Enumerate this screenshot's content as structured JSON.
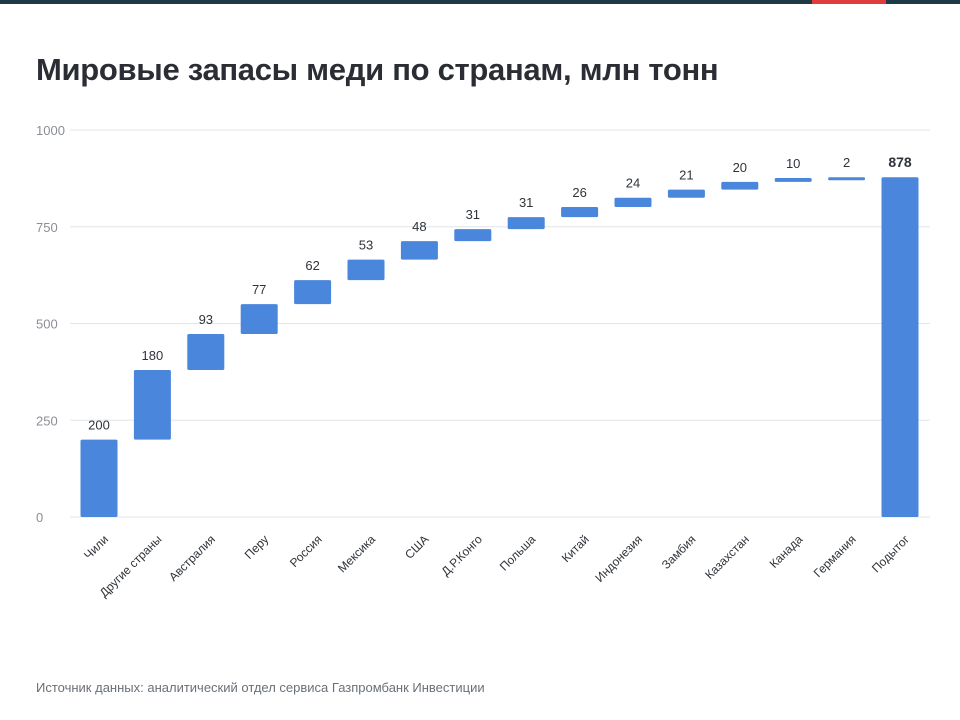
{
  "title": "Мировые запасы меди по странам, млн тонн",
  "source": "Источник данных: аналитический отдел сервиса Газпромбанк Инвестиции",
  "colors": {
    "bar": "#4a86dc",
    "grid": "#e2e5e9",
    "top_band": "#1f3a46",
    "top_accent": "#e23b3b"
  },
  "chart_data": {
    "type": "bar",
    "subtype": "waterfall",
    "title": "Мировые запасы меди по странам, млн тонн",
    "categories": [
      "Чили",
      "Другие страны",
      "Австралия",
      "Перу",
      "Россия",
      "Мексика",
      "США",
      "Д.Р.Конго",
      "Польша",
      "Китай",
      "Индонезия",
      "Замбия",
      "Казахстан",
      "Канада",
      "Германия",
      "Подытог"
    ],
    "values": [
      200,
      180,
      93,
      77,
      62,
      53,
      48,
      31,
      31,
      26,
      24,
      21,
      20,
      10,
      2,
      878
    ],
    "value_labels": [
      "200",
      "180",
      "93",
      "77",
      "62",
      "53",
      "48",
      "31",
      "31",
      "26",
      "24",
      "21",
      "20",
      "10",
      "2",
      "878"
    ],
    "total_index": 15,
    "ylim": [
      0,
      1000
    ],
    "yticks": [
      0,
      250,
      500,
      750,
      1000
    ],
    "ytick_labels": [
      "0",
      "250",
      "500",
      "750",
      "1000"
    ],
    "xlabel": "",
    "ylabel": "",
    "grid": true,
    "legend": "none"
  }
}
